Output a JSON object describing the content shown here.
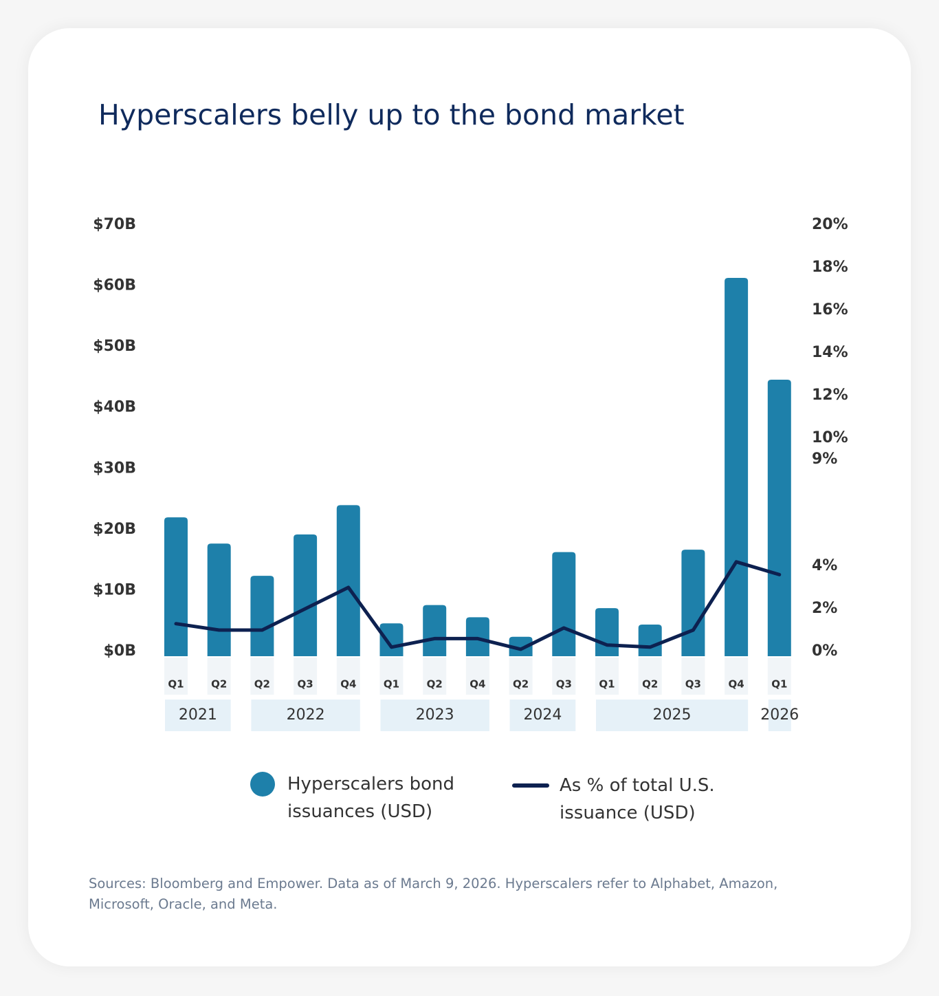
{
  "chart_data": {
    "type": "bar",
    "title": "Hyperscalers belly up to the bond market",
    "groups": [
      {
        "name": "2021",
        "categories": [
          "Q1",
          "Q2"
        ]
      },
      {
        "name": "2022",
        "categories": [
          "Q2",
          "Q3",
          "Q4"
        ]
      },
      {
        "name": "2023",
        "categories": [
          "Q1",
          "Q2",
          "Q4"
        ]
      },
      {
        "name": "2024",
        "categories": [
          "Q2",
          "Q3"
        ]
      },
      {
        "name": "2025",
        "categories": [
          "Q1",
          "Q2",
          "Q3",
          "Q4"
        ]
      },
      {
        "name": "2026",
        "categories": [
          "Q1"
        ]
      }
    ],
    "series": [
      {
        "name": "Hyperscalers bond issuances (USD)",
        "type": "bar",
        "color": "#1e80aa",
        "values": [
          22,
          17.7,
          12.4,
          19.2,
          24,
          4.6,
          7.6,
          5.6,
          2.4,
          16.3,
          7.1,
          4.4,
          16.7,
          61.3,
          44.6
        ]
      },
      {
        "name": "As % of total U.S. issuance (USD)",
        "type": "line",
        "axis": "y2",
        "color": "#0d2150",
        "values": [
          1.3,
          1.0,
          1.0,
          2.0,
          3.0,
          0.2,
          0.6,
          0.6,
          0.1,
          1.1,
          0.3,
          0.2,
          1.0,
          4.2,
          3.6
        ]
      }
    ],
    "ylim": [
      0,
      70
    ],
    "yticks": [
      {
        "value": 0,
        "label": "$0B"
      },
      {
        "value": 10,
        "label": "$10B"
      },
      {
        "value": 20,
        "label": "$20B"
      },
      {
        "value": 30,
        "label": "$30B"
      },
      {
        "value": 40,
        "label": "$40B"
      },
      {
        "value": 50,
        "label": "$50B"
      },
      {
        "value": 60,
        "label": "$60B"
      },
      {
        "value": 70,
        "label": "$70B"
      }
    ],
    "y2lim": [
      0,
      20
    ],
    "y2ticks": [
      {
        "value": 0,
        "label": "0%"
      },
      {
        "value": 2,
        "label": "2%"
      },
      {
        "value": 4,
        "label": "4%"
      },
      {
        "value": 9,
        "label": "9%"
      },
      {
        "value": 10,
        "label": "10%"
      },
      {
        "value": 12,
        "label": "12%"
      },
      {
        "value": 14,
        "label": "14%"
      },
      {
        "value": 16,
        "label": "16%"
      },
      {
        "value": 18,
        "label": "18%"
      },
      {
        "value": 20,
        "label": "20%"
      }
    ],
    "grid": false,
    "source": "Sources: Bloomberg and Empower. Data as of March 9, 2026. Hyperscalers refer to Alphabet, Amazon, Microsoft, Oracle, and Meta."
  }
}
